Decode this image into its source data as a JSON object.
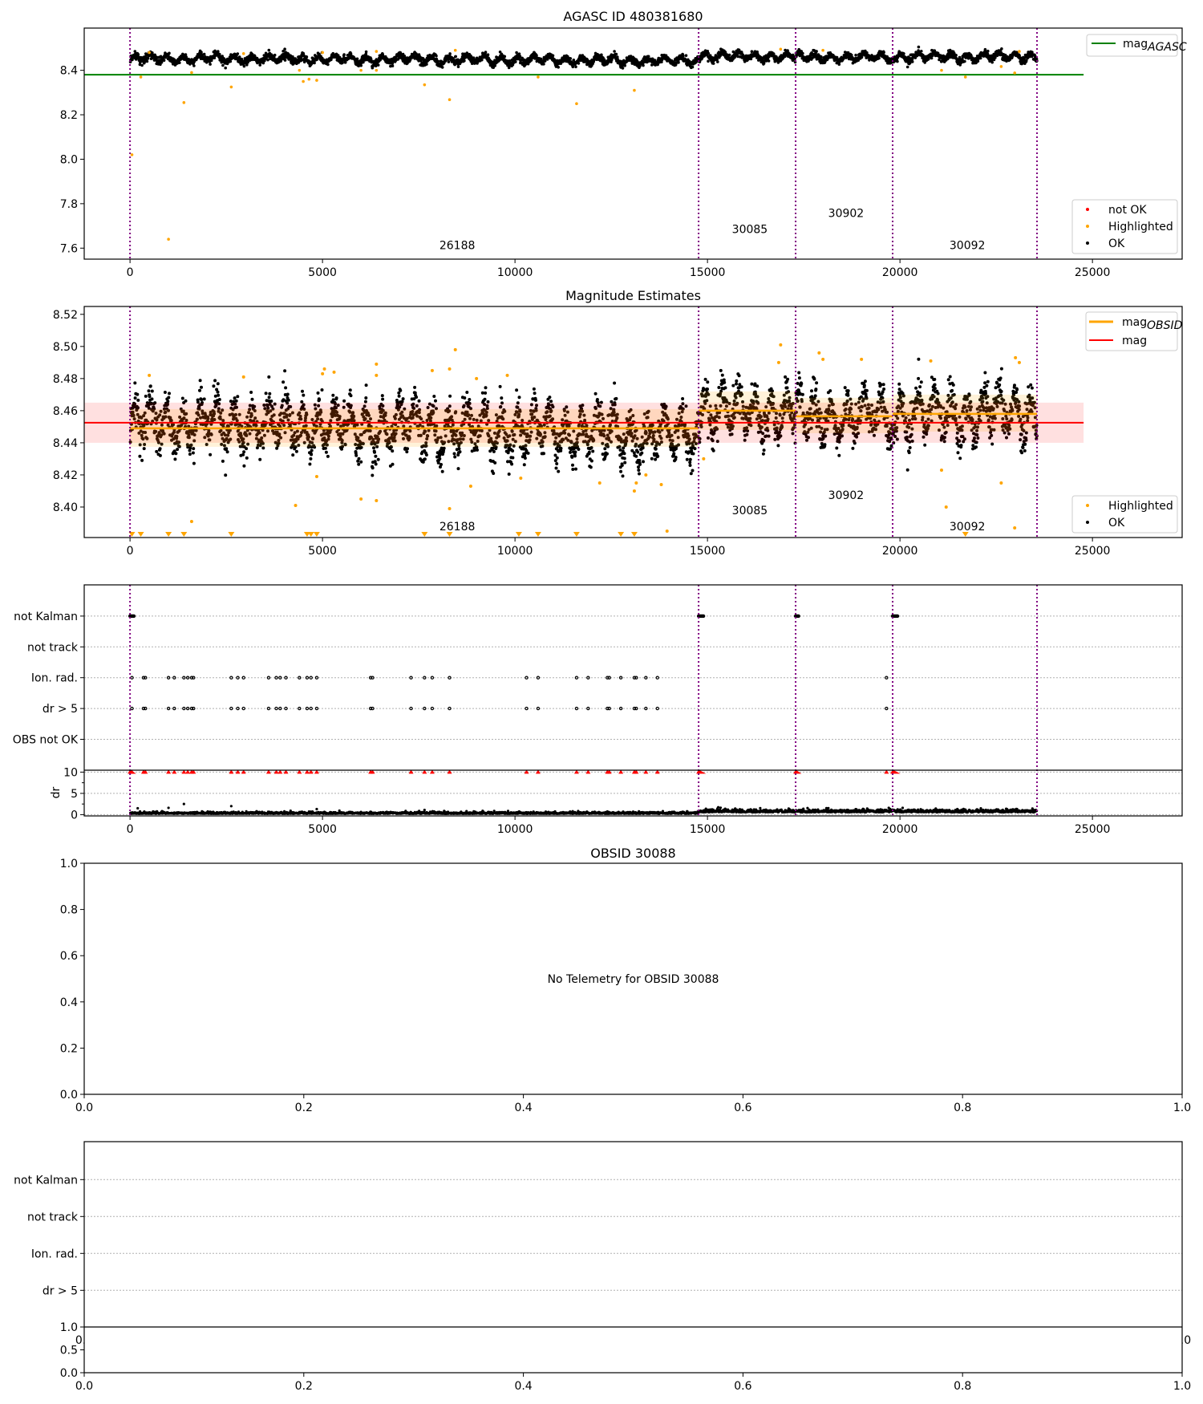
{
  "chart_data": [
    {
      "type": "scatter",
      "title": "AGASC ID 480381680",
      "xlim": [
        -1190,
        27330
      ],
      "ylim": [
        7.5505,
        8.59
      ],
      "xticks": [
        "0",
        "5000",
        "10000",
        "15000",
        "20000",
        "25000"
      ],
      "xtick_values": [
        0,
        5000,
        10000,
        15000,
        20000,
        25000
      ],
      "yticks": [
        "7.6",
        "7.8",
        "8.0",
        "8.2",
        "8.4"
      ],
      "ytick_values": [
        7.6,
        7.8,
        8.0,
        8.2,
        8.4
      ],
      "mag_agasc": 8.38,
      "mag_agasc_xrange": [
        -1190,
        24770
      ],
      "obsid_boundaries": [
        0,
        14770,
        17290,
        19810,
        23560
      ],
      "obsid_labels": [
        {
          "text": "26188",
          "x": 8500,
          "y": 7.595
        },
        {
          "text": "30085",
          "x": 16100,
          "y": 7.668
        },
        {
          "text": "30902",
          "x": 18600,
          "y": 7.74
        },
        {
          "text": "30092",
          "x": 21750,
          "y": 7.595
        }
      ],
      "highlighted": [
        [
          50,
          8.02
        ],
        [
          1000,
          7.64
        ],
        [
          1400,
          8.255
        ],
        [
          280,
          8.37
        ],
        [
          1600,
          8.39
        ],
        [
          2630,
          8.325
        ],
        [
          4400,
          8.4
        ],
        [
          4500,
          8.35
        ],
        [
          4650,
          8.36
        ],
        [
          4850,
          8.355
        ],
        [
          6000,
          8.4
        ],
        [
          6400,
          8.4
        ],
        [
          7650,
          8.335
        ],
        [
          8300,
          8.268
        ],
        [
          10600,
          8.37
        ],
        [
          11600,
          8.25
        ],
        [
          13100,
          8.31
        ],
        [
          21080,
          8.4
        ],
        [
          21700,
          8.37
        ],
        [
          22630,
          8.417
        ],
        [
          22980,
          8.388
        ],
        [
          500,
          8.48
        ],
        [
          2950,
          8.475
        ],
        [
          5000,
          8.48
        ],
        [
          6400,
          8.485
        ],
        [
          8450,
          8.49
        ],
        [
          16900,
          8.495
        ],
        [
          18000,
          8.49
        ],
        [
          23100,
          8.485
        ]
      ],
      "legend_top": {
        "label": "mag",
        "subscript": "AGASC",
        "color": "#008000"
      },
      "legend_bottom": [
        {
          "label": "not OK",
          "color": "#ff0000"
        },
        {
          "label": "Highlighted",
          "color": "#ffa500"
        },
        {
          "label": "OK",
          "color": "#000000"
        }
      ]
    },
    {
      "type": "scatter",
      "title": "Magnitude Estimates",
      "xlim": [
        -1190,
        27330
      ],
      "ylim": [
        8.381,
        8.5249
      ],
      "xticks": [
        "0",
        "5000",
        "10000",
        "15000",
        "20000",
        "25000"
      ],
      "xtick_values": [
        0,
        5000,
        10000,
        15000,
        20000,
        25000
      ],
      "yticks": [
        "8.40",
        "8.42",
        "8.44",
        "8.46",
        "8.48",
        "8.50",
        "8.52"
      ],
      "ytick_values": [
        8.4,
        8.42,
        8.44,
        8.46,
        8.48,
        8.5,
        8.52
      ],
      "mag": 8.4525,
      "mag_band": [
        8.44,
        8.465
      ],
      "mag_xrange": [
        -1190,
        24770
      ],
      "segments": [
        {
          "obsid": "26188",
          "x0": 0,
          "x1": 14770,
          "mean": 8.449,
          "band": [
            8.4375,
            8.461
          ]
        },
        {
          "obsid": "30085",
          "x0": 14770,
          "x1": 17290,
          "mean": 8.46,
          "band": [
            8.448,
            8.472
          ]
        },
        {
          "obsid": "30902",
          "x0": 17290,
          "x1": 19810,
          "mean": 8.4565,
          "band": [
            8.446,
            8.468
          ]
        },
        {
          "obsid": "30092",
          "x0": 19810,
          "x1": 23560,
          "mean": 8.458,
          "band": [
            8.447,
            8.47
          ]
        }
      ],
      "obsid_labels": [
        {
          "text": "26188",
          "x": 8500,
          "y": 8.3855
        },
        {
          "text": "30085",
          "x": 16100,
          "y": 8.3955
        },
        {
          "text": "30902",
          "x": 18600,
          "y": 8.405
        },
        {
          "text": "30092",
          "x": 21750,
          "y": 8.3855
        }
      ],
      "highlighted": [
        [
          500,
          8.482
        ],
        [
          2950,
          8.481
        ],
        [
          5000,
          8.483
        ],
        [
          5050,
          8.486
        ],
        [
          5300,
          8.484
        ],
        [
          6400,
          8.489
        ],
        [
          6400,
          8.482
        ],
        [
          8300,
          8.486
        ],
        [
          8450,
          8.498
        ],
        [
          7850,
          8.485
        ],
        [
          9000,
          8.48
        ],
        [
          9800,
          8.482
        ],
        [
          16900,
          8.501
        ],
        [
          16850,
          8.49
        ],
        [
          17900,
          8.496
        ],
        [
          18000,
          8.492
        ],
        [
          19000,
          8.492
        ],
        [
          20800,
          8.491
        ],
        [
          23000,
          8.493
        ],
        [
          23100,
          8.49
        ],
        [
          4300,
          8.401
        ],
        [
          6000,
          8.405
        ],
        [
          6400,
          8.404
        ],
        [
          8300,
          8.399
        ],
        [
          1600,
          8.391
        ],
        [
          8850,
          8.413
        ],
        [
          13100,
          8.41
        ],
        [
          13150,
          8.415
        ],
        [
          13400,
          8.42
        ],
        [
          13800,
          8.414
        ],
        [
          13950,
          8.385
        ],
        [
          14900,
          8.43
        ],
        [
          21080,
          8.423
        ],
        [
          21200,
          8.4
        ],
        [
          22630,
          8.415
        ],
        [
          22980,
          8.387
        ],
        [
          12200,
          8.415
        ],
        [
          10150,
          8.418
        ],
        [
          4850,
          8.419
        ]
      ],
      "below_range": [
        50,
        280,
        1000,
        1400,
        2630,
        4600,
        4700,
        4850,
        7650,
        8300,
        10100,
        10600,
        11600,
        12750,
        13100,
        21700
      ],
      "legend_top": [
        {
          "label": "mag",
          "subscript": "OBSID",
          "color": "#ffa500"
        },
        {
          "label": "mag",
          "subscript": "",
          "color": "#ff0000"
        }
      ],
      "legend_bottom": [
        {
          "label": "Highlighted",
          "color": "#ffa500"
        },
        {
          "label": "OK",
          "color": "#000000"
        }
      ]
    },
    {
      "type": "scatter",
      "categories": [
        "OBS not OK",
        "dr > 5",
        "Ion. rad.",
        "not track",
        "not Kalman"
      ],
      "ylabel": "dr",
      "dr_ylim": [
        -0.3,
        10.45
      ],
      "dr_yticks": [
        "0",
        "5",
        "10"
      ],
      "dr_ytick_values": [
        0,
        5,
        10
      ],
      "xticks": [
        "0",
        "5000",
        "10000",
        "15000",
        "20000",
        "25000"
      ],
      "xtick_values": [
        0,
        5000,
        10000,
        15000,
        20000,
        25000
      ],
      "flag_x": [
        50,
        350,
        400,
        1000,
        1150,
        1400,
        1500,
        1600,
        1650,
        2630,
        2800,
        2950,
        3600,
        3800,
        3900,
        4050,
        4400,
        4600,
        4700,
        4850,
        6250,
        6300,
        7300,
        7650,
        7850,
        8300,
        10300,
        10600,
        11600,
        11900,
        12400,
        12450,
        12750,
        13100,
        13150,
        13400,
        13700,
        19650
      ],
      "not_kalman_ranges": [
        [
          0,
          100
        ],
        [
          14770,
          14900
        ],
        [
          17290,
          17380
        ],
        [
          19810,
          19950
        ]
      ],
      "dr_outliers": [
        [
          200,
          1.5
        ],
        [
          1000,
          1.6
        ],
        [
          1400,
          2.5
        ],
        [
          2630,
          2.0
        ],
        [
          4850,
          1.3
        ],
        [
          7650,
          1.1
        ]
      ]
    },
    {
      "type": "scatter",
      "title": "OBSID 30088",
      "message": "No Telemetry for OBSID 30088",
      "xlim": [
        0,
        1
      ],
      "ylim": [
        0,
        1
      ],
      "xticks": [
        "0.0",
        "0.2",
        "0.4",
        "0.6",
        "0.8",
        "1.0"
      ],
      "yticks": [
        "0.0",
        "0.2",
        "0.4",
        "0.6",
        "0.8",
        "1.0"
      ]
    },
    {
      "type": "scatter",
      "categories": [
        "dr > 5",
        "Ion. rad.",
        "not track",
        "not Kalman"
      ],
      "xticks": [
        "0.0",
        "0.2",
        "0.4",
        "0.6",
        "0.8",
        "1.0"
      ],
      "sub_yticks": [
        "0.0",
        "0.5",
        "1.0"
      ],
      "hidden_xticks": [
        "0.0",
        "1.0"
      ]
    }
  ],
  "colors": {
    "ok": "#000000",
    "highlighted": "#ffa500",
    "not_ok": "#ff0000",
    "boundary": "#800080",
    "agasc": "#008000",
    "mag": "#ff0000",
    "mag_obsid": "#ffa500",
    "grid": "#b0b0b0"
  }
}
